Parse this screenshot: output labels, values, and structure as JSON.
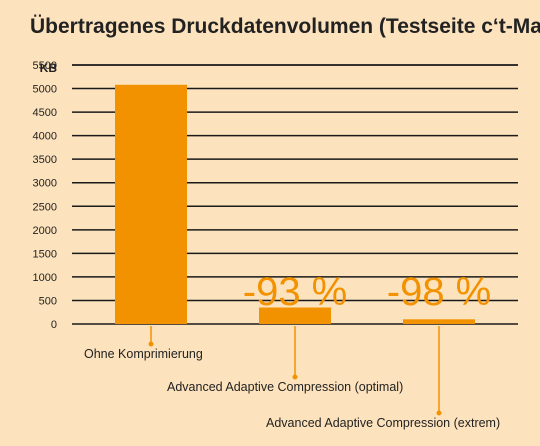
{
  "chart_data": {
    "type": "bar",
    "title": "Übertragenes Druckdatenvolumen (Testseite c‘t-Magazin)",
    "unit_label": "KB",
    "ylim": [
      0,
      5500
    ],
    "yticks": [
      0,
      500,
      1000,
      1500,
      2000,
      2500,
      3000,
      3500,
      4000,
      4500,
      5000,
      5500
    ],
    "ytick_labels": [
      "0",
      "500",
      "1000",
      "1500",
      "2000",
      "2500",
      "3000",
      "3500",
      "4000",
      "4500",
      "5000",
      "5500"
    ],
    "grid": true,
    "categories": [
      "Ohne Komprimierung",
      "Advanced Adaptive Compression (optimal)",
      "Advanced Adaptive Compression (extrem)"
    ],
    "values": [
      5080,
      350,
      100
    ],
    "annotations": [
      "",
      "-93 %",
      "-98 %"
    ],
    "colors": {
      "background": "#fde3bd",
      "bar": "#f39200",
      "grid": "#1a1a1a",
      "text": "#222222"
    }
  }
}
